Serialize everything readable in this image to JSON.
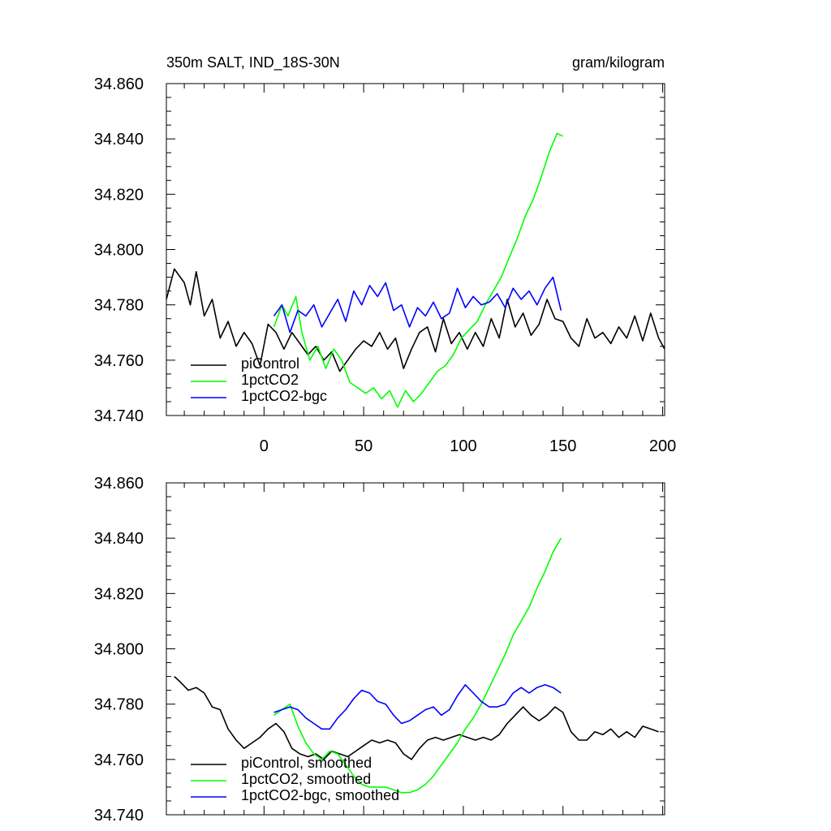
{
  "chart_data": [
    {
      "type": "line",
      "title": "350m SALT, IND_18S-30N",
      "units": "gram/kilogram",
      "xlim": [
        -49,
        201
      ],
      "ylim": [
        34.74,
        34.86
      ],
      "yticks": [
        "34.740",
        "34.760",
        "34.780",
        "34.800",
        "34.820",
        "34.840",
        "34.860"
      ],
      "xticks": [
        "0",
        "50",
        "100",
        "150",
        "200"
      ],
      "legend_position": "bottom-left",
      "series": [
        {
          "name": "piControl",
          "color": "#000000",
          "x": [
            -49,
            -45,
            -40,
            -37,
            -34,
            -30,
            -26,
            -22,
            -18,
            -14,
            -10,
            -6,
            -2,
            2,
            6,
            10,
            14,
            18,
            22,
            26,
            30,
            34,
            38,
            42,
            46,
            50,
            54,
            58,
            62,
            66,
            70,
            74,
            78,
            82,
            86,
            90,
            94,
            98,
            102,
            106,
            110,
            114,
            118,
            122,
            126,
            130,
            134,
            138,
            142,
            146,
            150,
            154,
            158,
            162,
            166,
            170,
            174,
            178,
            182,
            186,
            190,
            194,
            198,
            201
          ],
          "y": [
            34.782,
            34.793,
            34.788,
            34.78,
            34.792,
            34.776,
            34.782,
            34.768,
            34.774,
            34.765,
            34.77,
            34.766,
            34.758,
            34.773,
            34.77,
            34.764,
            34.77,
            34.766,
            34.762,
            34.765,
            34.76,
            34.763,
            34.756,
            34.76,
            34.764,
            34.767,
            34.765,
            34.77,
            34.764,
            34.768,
            34.757,
            34.764,
            34.77,
            34.772,
            34.763,
            34.775,
            34.766,
            34.77,
            34.764,
            34.77,
            34.765,
            34.775,
            34.768,
            34.782,
            34.772,
            34.777,
            34.769,
            34.773,
            34.782,
            34.775,
            34.774,
            34.768,
            34.765,
            34.775,
            34.768,
            34.77,
            34.766,
            34.772,
            34.768,
            34.776,
            34.767,
            34.777,
            34.768,
            34.764
          ]
        },
        {
          "name": "1pctCO2",
          "color": "#00ff00",
          "x": [
            5,
            9,
            12,
            16,
            19,
            23,
            27,
            31,
            35,
            39,
            43,
            47,
            51,
            55,
            59,
            63,
            67,
            71,
            75,
            79,
            83,
            87,
            91,
            95,
            99,
            103,
            107,
            111,
            115,
            119,
            123,
            127,
            131,
            135,
            139,
            143,
            147,
            150
          ],
          "y": [
            34.772,
            34.78,
            34.776,
            34.783,
            34.77,
            34.76,
            34.765,
            34.757,
            34.764,
            34.76,
            34.752,
            34.75,
            34.748,
            34.75,
            34.746,
            34.749,
            34.743,
            34.749,
            34.745,
            34.748,
            34.752,
            34.756,
            34.758,
            34.762,
            34.768,
            34.771,
            34.774,
            34.78,
            34.785,
            34.79,
            34.797,
            34.804,
            34.812,
            34.818,
            34.826,
            34.835,
            34.842,
            34.841
          ]
        },
        {
          "name": "1pctCO2-bgc",
          "color": "#0000ff",
          "x": [
            5,
            9,
            13,
            17,
            21,
            25,
            29,
            33,
            37,
            41,
            45,
            49,
            53,
            57,
            61,
            65,
            69,
            73,
            77,
            81,
            85,
            89,
            93,
            97,
            101,
            105,
            109,
            113,
            117,
            121,
            125,
            129,
            133,
            137,
            141,
            145,
            149
          ],
          "y": [
            34.776,
            34.78,
            34.77,
            34.778,
            34.776,
            34.78,
            34.772,
            34.777,
            34.782,
            34.774,
            34.785,
            34.78,
            34.787,
            34.783,
            34.788,
            34.778,
            34.78,
            34.772,
            34.779,
            34.776,
            34.781,
            34.775,
            34.777,
            34.786,
            34.779,
            34.783,
            34.78,
            34.781,
            34.784,
            34.779,
            34.786,
            34.782,
            34.785,
            34.78,
            34.786,
            34.79,
            34.778
          ]
        }
      ]
    },
    {
      "type": "line",
      "xlim": [
        -49,
        201
      ],
      "ylim": [
        34.74,
        34.86
      ],
      "yticks": [
        "34.740",
        "34.760",
        "34.780",
        "34.800",
        "34.820",
        "34.840",
        "34.860"
      ],
      "legend_position": "bottom-left",
      "series": [
        {
          "name": "piControl, smoothed",
          "color": "#000000",
          "x": [
            -45,
            -42,
            -38,
            -34,
            -30,
            -26,
            -22,
            -18,
            -14,
            -10,
            -6,
            -2,
            2,
            6,
            10,
            14,
            18,
            22,
            26,
            30,
            34,
            38,
            42,
            46,
            50,
            54,
            58,
            62,
            66,
            70,
            74,
            78,
            82,
            86,
            90,
            94,
            98,
            102,
            106,
            110,
            114,
            118,
            122,
            126,
            130,
            134,
            138,
            142,
            146,
            150,
            154,
            158,
            162,
            166,
            170,
            174,
            178,
            182,
            186,
            190,
            194,
            198
          ],
          "y": [
            34.79,
            34.788,
            34.785,
            34.786,
            34.784,
            34.779,
            34.778,
            34.771,
            34.767,
            34.764,
            34.766,
            34.768,
            34.771,
            34.773,
            34.77,
            34.764,
            34.762,
            34.761,
            34.762,
            34.76,
            34.763,
            34.762,
            34.761,
            34.763,
            34.765,
            34.767,
            34.766,
            34.767,
            34.766,
            34.762,
            34.76,
            34.764,
            34.767,
            34.768,
            34.767,
            34.768,
            34.769,
            34.768,
            34.767,
            34.768,
            34.767,
            34.769,
            34.773,
            34.776,
            34.779,
            34.776,
            34.774,
            34.776,
            34.779,
            34.777,
            34.77,
            34.767,
            34.767,
            34.77,
            34.769,
            34.771,
            34.768,
            34.77,
            34.768,
            34.772,
            34.771,
            34.77
          ]
        },
        {
          "name": "1pctCO2, smoothed",
          "color": "#00ff00",
          "x": [
            5,
            9,
            13,
            17,
            21,
            25,
            29,
            33,
            37,
            41,
            45,
            49,
            53,
            57,
            61,
            65,
            69,
            73,
            77,
            81,
            85,
            89,
            93,
            97,
            101,
            105,
            109,
            113,
            117,
            121,
            125,
            129,
            133,
            137,
            141,
            145,
            149
          ],
          "y": [
            34.776,
            34.778,
            34.78,
            34.772,
            34.766,
            34.762,
            34.76,
            34.763,
            34.762,
            34.758,
            34.754,
            34.751,
            34.75,
            34.75,
            34.75,
            34.749,
            34.748,
            34.748,
            34.749,
            34.751,
            34.754,
            34.758,
            34.762,
            34.766,
            34.771,
            34.775,
            34.78,
            34.786,
            34.792,
            34.798,
            34.805,
            34.81,
            34.815,
            34.822,
            34.828,
            34.835,
            34.84
          ]
        },
        {
          "name": "1pctCO2-bgc, smoothed",
          "color": "#0000ff",
          "x": [
            5,
            9,
            13,
            17,
            21,
            25,
            29,
            33,
            37,
            41,
            45,
            49,
            53,
            57,
            61,
            65,
            69,
            73,
            77,
            81,
            85,
            89,
            93,
            97,
            101,
            105,
            109,
            113,
            117,
            121,
            125,
            129,
            133,
            137,
            141,
            145,
            149
          ],
          "y": [
            34.777,
            34.778,
            34.779,
            34.778,
            34.775,
            34.773,
            34.771,
            34.771,
            34.775,
            34.778,
            34.782,
            34.785,
            34.784,
            34.781,
            34.78,
            34.776,
            34.773,
            34.774,
            34.776,
            34.778,
            34.779,
            34.776,
            34.778,
            34.783,
            34.787,
            34.784,
            34.781,
            34.779,
            34.779,
            34.78,
            34.784,
            34.786,
            34.784,
            34.786,
            34.787,
            34.786,
            34.784
          ]
        }
      ]
    }
  ]
}
